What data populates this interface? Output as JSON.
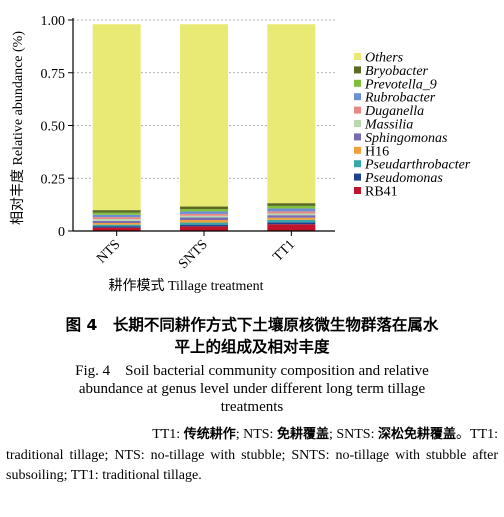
{
  "chart_data": {
    "type": "bar",
    "stacked": true,
    "categories": [
      "NTS",
      "SNTS",
      "TT1"
    ],
    "xlabel": "耕作模式 Tillage treatment",
    "ylabel": "相对丰度 Relative abundance (%)",
    "ylim": [
      0,
      1
    ],
    "yticks": [
      "0",
      "0.25",
      "0.50",
      "0.75",
      "1.00"
    ],
    "grid": "dashed-horizontal",
    "legend_position": "right",
    "series": [
      {
        "name": "RB41",
        "color": "#c0142a",
        "values": [
          0.016,
          0.022,
          0.032
        ]
      },
      {
        "name": "Pseudomonas",
        "color": "#1f3f8f",
        "values": [
          0.007,
          0.008,
          0.009
        ]
      },
      {
        "name": "Pseudarthrobacter",
        "color": "#37a6a6",
        "values": [
          0.007,
          0.01,
          0.012
        ]
      },
      {
        "name": "H16",
        "color": "#f0a03c",
        "values": [
          0.008,
          0.012,
          0.01
        ]
      },
      {
        "name": "Sphingomonas",
        "color": "#7a6bb0",
        "values": [
          0.01,
          0.012,
          0.012
        ]
      },
      {
        "name": "Massilia",
        "color": "#b8d8b0",
        "values": [
          0.008,
          0.008,
          0.008
        ]
      },
      {
        "name": "Duganella",
        "color": "#e58a84",
        "values": [
          0.01,
          0.009,
          0.01
        ]
      },
      {
        "name": "Rubrobacter",
        "color": "#6b8fd0",
        "values": [
          0.011,
          0.012,
          0.014
        ]
      },
      {
        "name": "Prevotella_9",
        "color": "#7fbf3a",
        "values": [
          0.01,
          0.011,
          0.012
        ]
      },
      {
        "name": "Bryobacter",
        "color": "#5a6a22",
        "values": [
          0.012,
          0.012,
          0.013
        ]
      },
      {
        "name": "Others",
        "color": "#e9ea73",
        "values": [
          0.881,
          0.864,
          0.848
        ]
      }
    ]
  },
  "caption": {
    "zh_line1": "图 4　长期不同耕作方式下土壤原核微生物群落在属水",
    "zh_line2": "平上的组成及相对丰度",
    "en_line1": "Fig. 4　Soil bacterial community composition and relative",
    "en_line2": "abundance at genus level under different long term tillage",
    "en_line3": "treatments"
  },
  "notes": {
    "tt1_label": "TT1: ",
    "tt1_zh": "传统耕作",
    "nts_label": "; NTS: ",
    "nts_zh": "免耕覆盖",
    "snts_label": "; SNTS: ",
    "snts_zh": "深松免耕覆盖",
    "en_start": "。TT1:",
    "en_rest": "traditional tillage; NTS: no-tillage with stubble; SNTS: no-tillage with stubble after subsoiling; TT1: traditional tillage."
  }
}
